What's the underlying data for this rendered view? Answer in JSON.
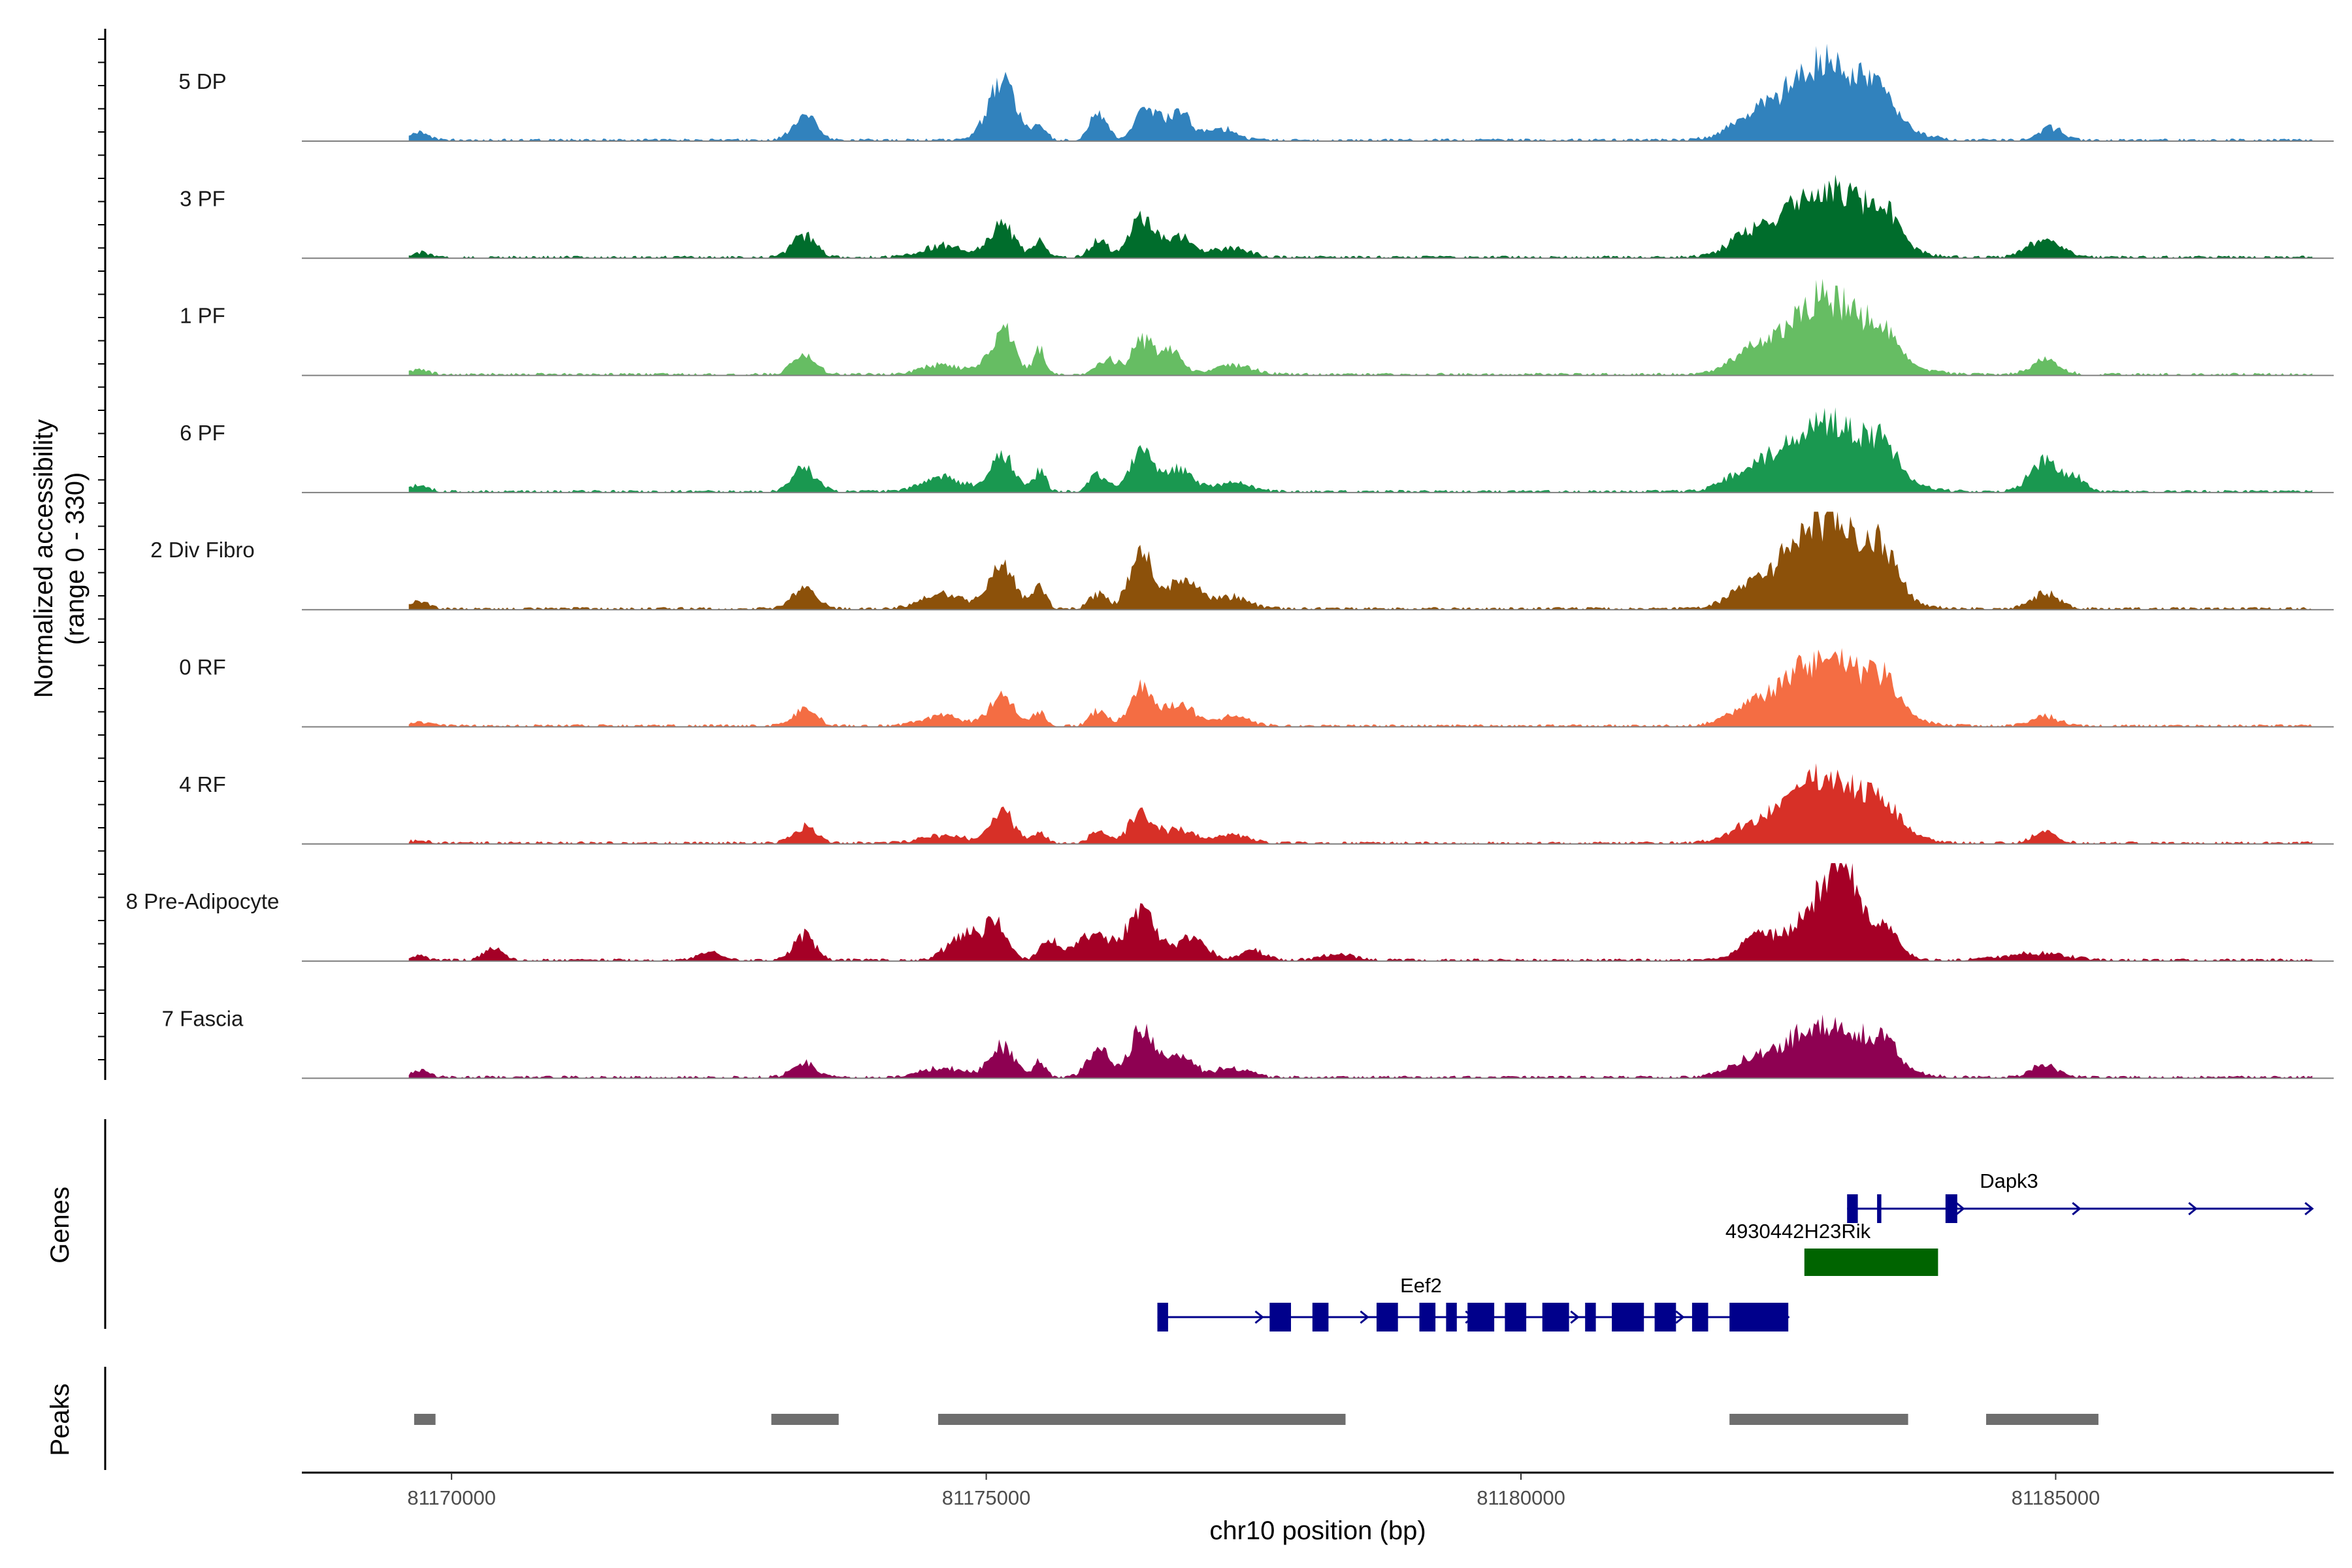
{
  "chart_data": {
    "type": "area",
    "title": "",
    "xlabel": "chr10 position (bp)",
    "ylabel": "Normalized accessibility",
    "ylabel_range": "(range 0 - 330)",
    "ylim": [
      0,
      330
    ],
    "xlim": [
      81168600,
      81187600
    ],
    "x_ticks": [
      81170000,
      81175000,
      81180000,
      81185000
    ],
    "x_tick_labels": [
      "81170000",
      "81175000",
      "81180000",
      "81185000"
    ],
    "tracks": [
      {
        "name": "5 DP",
        "color": "#3182BD",
        "peaks": [
          [
            81169700,
            0.09,
            90
          ],
          [
            81173300,
            0.25,
            110
          ],
          [
            81175150,
            0.6,
            130
          ],
          [
            81175500,
            0.15,
            60
          ],
          [
            81176050,
            0.28,
            80
          ],
          [
            81176500,
            0.36,
            100
          ],
          [
            81176800,
            0.3,
            110
          ],
          [
            81177200,
            0.12,
            130
          ],
          [
            81182850,
            0.82,
            400
          ],
          [
            81182100,
            0.12,
            180
          ],
          [
            81183350,
            0.22,
            120
          ],
          [
            81184950,
            0.13,
            110
          ]
        ]
      },
      {
        "name": "3 PF",
        "color": "#006D2C",
        "peaks": [
          [
            81169700,
            0.05,
            90
          ],
          [
            81173300,
            0.23,
            110
          ],
          [
            81174600,
            0.12,
            200
          ],
          [
            81175150,
            0.32,
            120
          ],
          [
            81175500,
            0.16,
            60
          ],
          [
            81176050,
            0.18,
            80
          ],
          [
            81176450,
            0.42,
            110
          ],
          [
            81176800,
            0.22,
            140
          ],
          [
            81177300,
            0.1,
            160
          ],
          [
            81182850,
            0.73,
            390
          ],
          [
            81182100,
            0.14,
            180
          ],
          [
            81183400,
            0.3,
            130
          ],
          [
            81184900,
            0.2,
            150
          ]
        ]
      },
      {
        "name": "1 PF",
        "color": "#66BD63",
        "peaks": [
          [
            81169700,
            0.05,
            90
          ],
          [
            81173300,
            0.2,
            110
          ],
          [
            81174600,
            0.1,
            200
          ],
          [
            81175150,
            0.46,
            110
          ],
          [
            81175500,
            0.25,
            60
          ],
          [
            81176150,
            0.15,
            100
          ],
          [
            81176450,
            0.33,
            90
          ],
          [
            81176700,
            0.28,
            110
          ],
          [
            81177300,
            0.1,
            180
          ],
          [
            81182850,
            0.78,
            400
          ],
          [
            81182100,
            0.12,
            160
          ],
          [
            81183400,
            0.22,
            120
          ],
          [
            81184900,
            0.16,
            130
          ]
        ]
      },
      {
        "name": "6 PF",
        "color": "#1A9850",
        "peaks": [
          [
            81169700,
            0.06,
            90
          ],
          [
            81173300,
            0.24,
            110
          ],
          [
            81174600,
            0.14,
            200
          ],
          [
            81175150,
            0.36,
            110
          ],
          [
            81175500,
            0.2,
            60
          ],
          [
            81176050,
            0.18,
            80
          ],
          [
            81176450,
            0.4,
            110
          ],
          [
            81176800,
            0.22,
            140
          ],
          [
            81177300,
            0.1,
            160
          ],
          [
            81182850,
            0.73,
            400
          ],
          [
            81182100,
            0.14,
            180
          ],
          [
            81183400,
            0.25,
            120
          ],
          [
            81184900,
            0.3,
            140
          ],
          [
            81185200,
            0.12,
            90
          ]
        ]
      },
      {
        "name": "2 Div Fibro",
        "color": "#8C510A",
        "peaks": [
          [
            81169700,
            0.08,
            90
          ],
          [
            81173300,
            0.22,
            110
          ],
          [
            81174600,
            0.15,
            200
          ],
          [
            81175150,
            0.45,
            120
          ],
          [
            81175500,
            0.22,
            60
          ],
          [
            81176050,
            0.16,
            80
          ],
          [
            81176450,
            0.55,
            110
          ],
          [
            81176850,
            0.3,
            150
          ],
          [
            81177300,
            0.12,
            160
          ],
          [
            81182850,
            0.92,
            380
          ],
          [
            81182100,
            0.12,
            180
          ],
          [
            81183400,
            0.32,
            130
          ],
          [
            81184900,
            0.16,
            130
          ]
        ]
      },
      {
        "name": "0 RF",
        "color": "#F46D43",
        "peaks": [
          [
            81169700,
            0.04,
            90
          ],
          [
            81173300,
            0.18,
            110
          ],
          [
            81174600,
            0.1,
            200
          ],
          [
            81175150,
            0.32,
            110
          ],
          [
            81175500,
            0.16,
            60
          ],
          [
            81176050,
            0.16,
            80
          ],
          [
            81176450,
            0.38,
            110
          ],
          [
            81176800,
            0.22,
            140
          ],
          [
            81177300,
            0.1,
            160
          ],
          [
            81182850,
            0.7,
            400
          ],
          [
            81182100,
            0.1,
            180
          ],
          [
            81183400,
            0.25,
            130
          ],
          [
            81184900,
            0.1,
            130
          ]
        ]
      },
      {
        "name": "4 RF",
        "color": "#D73027",
        "peaks": [
          [
            81169700,
            0.03,
            90
          ],
          [
            81173300,
            0.16,
            110
          ],
          [
            81174600,
            0.08,
            200
          ],
          [
            81175150,
            0.32,
            110
          ],
          [
            81175500,
            0.12,
            60
          ],
          [
            81176050,
            0.12,
            80
          ],
          [
            81176450,
            0.32,
            110
          ],
          [
            81176800,
            0.14,
            140
          ],
          [
            81177300,
            0.08,
            160
          ],
          [
            81182850,
            0.66,
            400
          ],
          [
            81182100,
            0.08,
            180
          ],
          [
            81183400,
            0.2,
            130
          ],
          [
            81184900,
            0.12,
            110
          ]
        ]
      },
      {
        "name": "8 Pre-Adipocyte",
        "color": "#A50026",
        "peaks": [
          [
            81169700,
            0.05,
            60
          ],
          [
            81170400,
            0.12,
            90
          ],
          [
            81172400,
            0.08,
            100
          ],
          [
            81173300,
            0.26,
            100
          ],
          [
            81174800,
            0.28,
            150
          ],
          [
            81175100,
            0.36,
            100
          ],
          [
            81175600,
            0.2,
            90
          ],
          [
            81176000,
            0.28,
            150
          ],
          [
            81176450,
            0.55,
            130
          ],
          [
            81176900,
            0.22,
            150
          ],
          [
            81177500,
            0.1,
            120
          ],
          [
            81178300,
            0.06,
            160
          ],
          [
            81182850,
            0.6,
            300
          ],
          [
            81182200,
            0.2,
            150
          ],
          [
            81183000,
            0.62,
            120
          ],
          [
            81183400,
            0.24,
            130
          ],
          [
            81184800,
            0.07,
            300
          ]
        ]
      },
      {
        "name": "7 Fascia",
        "color": "#8E0152",
        "peaks": [
          [
            81169700,
            0.07,
            90
          ],
          [
            81173300,
            0.16,
            110
          ],
          [
            81174600,
            0.1,
            200
          ],
          [
            81175150,
            0.32,
            110
          ],
          [
            81175500,
            0.16,
            60
          ],
          [
            81176050,
            0.3,
            100
          ],
          [
            81176450,
            0.48,
            110
          ],
          [
            81176800,
            0.24,
            130
          ],
          [
            81177300,
            0.1,
            160
          ],
          [
            81182850,
            0.55,
            390
          ],
          [
            81182100,
            0.1,
            180
          ],
          [
            81183400,
            0.2,
            130
          ],
          [
            81184900,
            0.12,
            130
          ]
        ]
      }
    ],
    "genes_track": {
      "label": "Genes",
      "genes": [
        {
          "name": "Dapk3",
          "strand": "+",
          "start": 81183050,
          "end": 81187400,
          "exons": [
            [
              81183050,
              81183150
            ],
            [
              81183330,
              81183370
            ],
            [
              81183970,
              81184080
            ]
          ],
          "color": "#00008B"
        },
        {
          "name": "4930442H23Rik",
          "strand": "+",
          "start": 81182650,
          "end": 81183900,
          "exons": [
            [
              81182650,
              81183900
            ]
          ],
          "color": "#006400"
        },
        {
          "name": "Eef2",
          "strand": "+",
          "start": 81176600,
          "end": 81182500,
          "exons": [
            [
              81176600,
              81176700
            ],
            [
              81177650,
              81177850
            ],
            [
              81178050,
              81178200
            ],
            [
              81178650,
              81178850
            ],
            [
              81179050,
              81179200
            ],
            [
              81179300,
              81179400
            ],
            [
              81179500,
              81179750
            ],
            [
              81179850,
              81180050
            ],
            [
              81180200,
              81180450
            ],
            [
              81180600,
              81180700
            ],
            [
              81180850,
              81181150
            ],
            [
              81181250,
              81181450
            ],
            [
              81181600,
              81181750
            ],
            [
              81181950,
              81182500
            ]
          ],
          "color": "#00008B"
        }
      ]
    },
    "peaks_track": {
      "label": "Peaks",
      "color": "#6E6E6E",
      "regions": [
        [
          81169650,
          81169850
        ],
        [
          81172990,
          81173620
        ],
        [
          81174550,
          81178360
        ],
        [
          81181950,
          81183620
        ],
        [
          81184350,
          81185400
        ]
      ]
    }
  }
}
